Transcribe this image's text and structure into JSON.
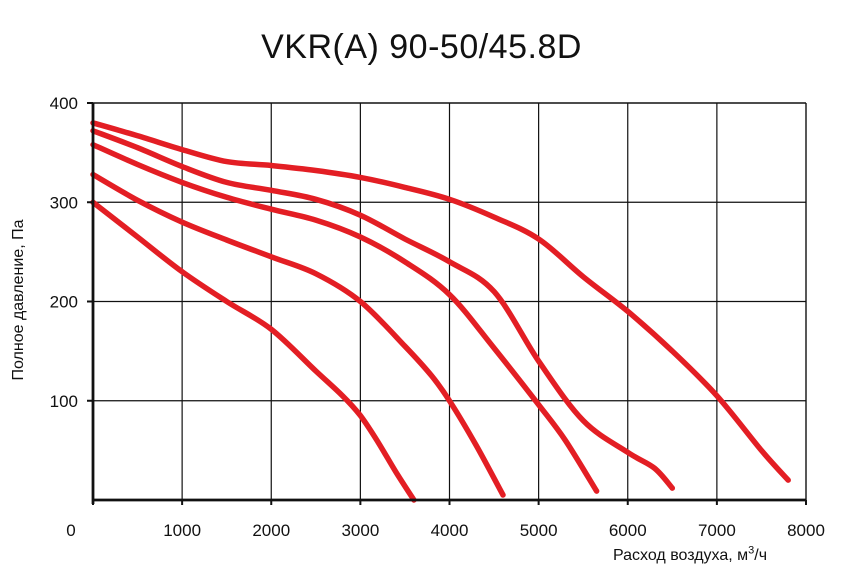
{
  "chart_data": {
    "type": "line",
    "title": "VKR(A) 90-50/45.8D",
    "xlabel": "Расход воздуха, м",
    "xlabel_unit_sup": "3",
    "xlabel_unit_tail": "/ч",
    "ylabel": "Полное давление, Па",
    "xlim": [
      0,
      8000
    ],
    "ylim": [
      0,
      400
    ],
    "x_ticks": [
      0,
      1000,
      2000,
      3000,
      4000,
      5000,
      6000,
      7000,
      8000
    ],
    "y_ticks": [
      100,
      200,
      300,
      400
    ],
    "grid": true,
    "legend": "none",
    "line_color": "#e31e24",
    "series": [
      {
        "x": [
          0,
          500,
          1000,
          1500,
          2000,
          2500,
          2800,
          3000,
          3200,
          3400,
          3600
        ],
        "y": [
          300,
          265,
          230,
          200,
          172,
          130,
          105,
          85,
          58,
          28,
          0
        ]
      },
      {
        "x": [
          0,
          500,
          1000,
          1500,
          2000,
          2500,
          3000,
          3500,
          3800,
          4000,
          4300,
          4600
        ],
        "y": [
          328,
          302,
          280,
          262,
          245,
          228,
          200,
          155,
          125,
          100,
          55,
          5
        ]
      },
      {
        "x": [
          0,
          500,
          1000,
          1500,
          2000,
          2500,
          3000,
          3500,
          4000,
          4500,
          5000,
          5300,
          5650
        ],
        "y": [
          358,
          338,
          320,
          305,
          293,
          282,
          265,
          240,
          207,
          153,
          96,
          60,
          9
        ]
      },
      {
        "x": [
          0,
          500,
          1000,
          1500,
          2000,
          2500,
          3000,
          3500,
          4000,
          4500,
          5000,
          5500,
          6000,
          6300,
          6500
        ],
        "y": [
          372,
          355,
          336,
          320,
          312,
          303,
          287,
          263,
          240,
          210,
          140,
          80,
          48,
          32,
          12
        ]
      },
      {
        "x": [
          0,
          500,
          1000,
          1500,
          2000,
          2500,
          3000,
          3500,
          4000,
          4500,
          5000,
          5500,
          6000,
          6500,
          7000,
          7500,
          7800
        ],
        "y": [
          380,
          367,
          353,
          341,
          337,
          332,
          325,
          315,
          303,
          285,
          263,
          225,
          190,
          150,
          105,
          50,
          20
        ]
      }
    ]
  }
}
